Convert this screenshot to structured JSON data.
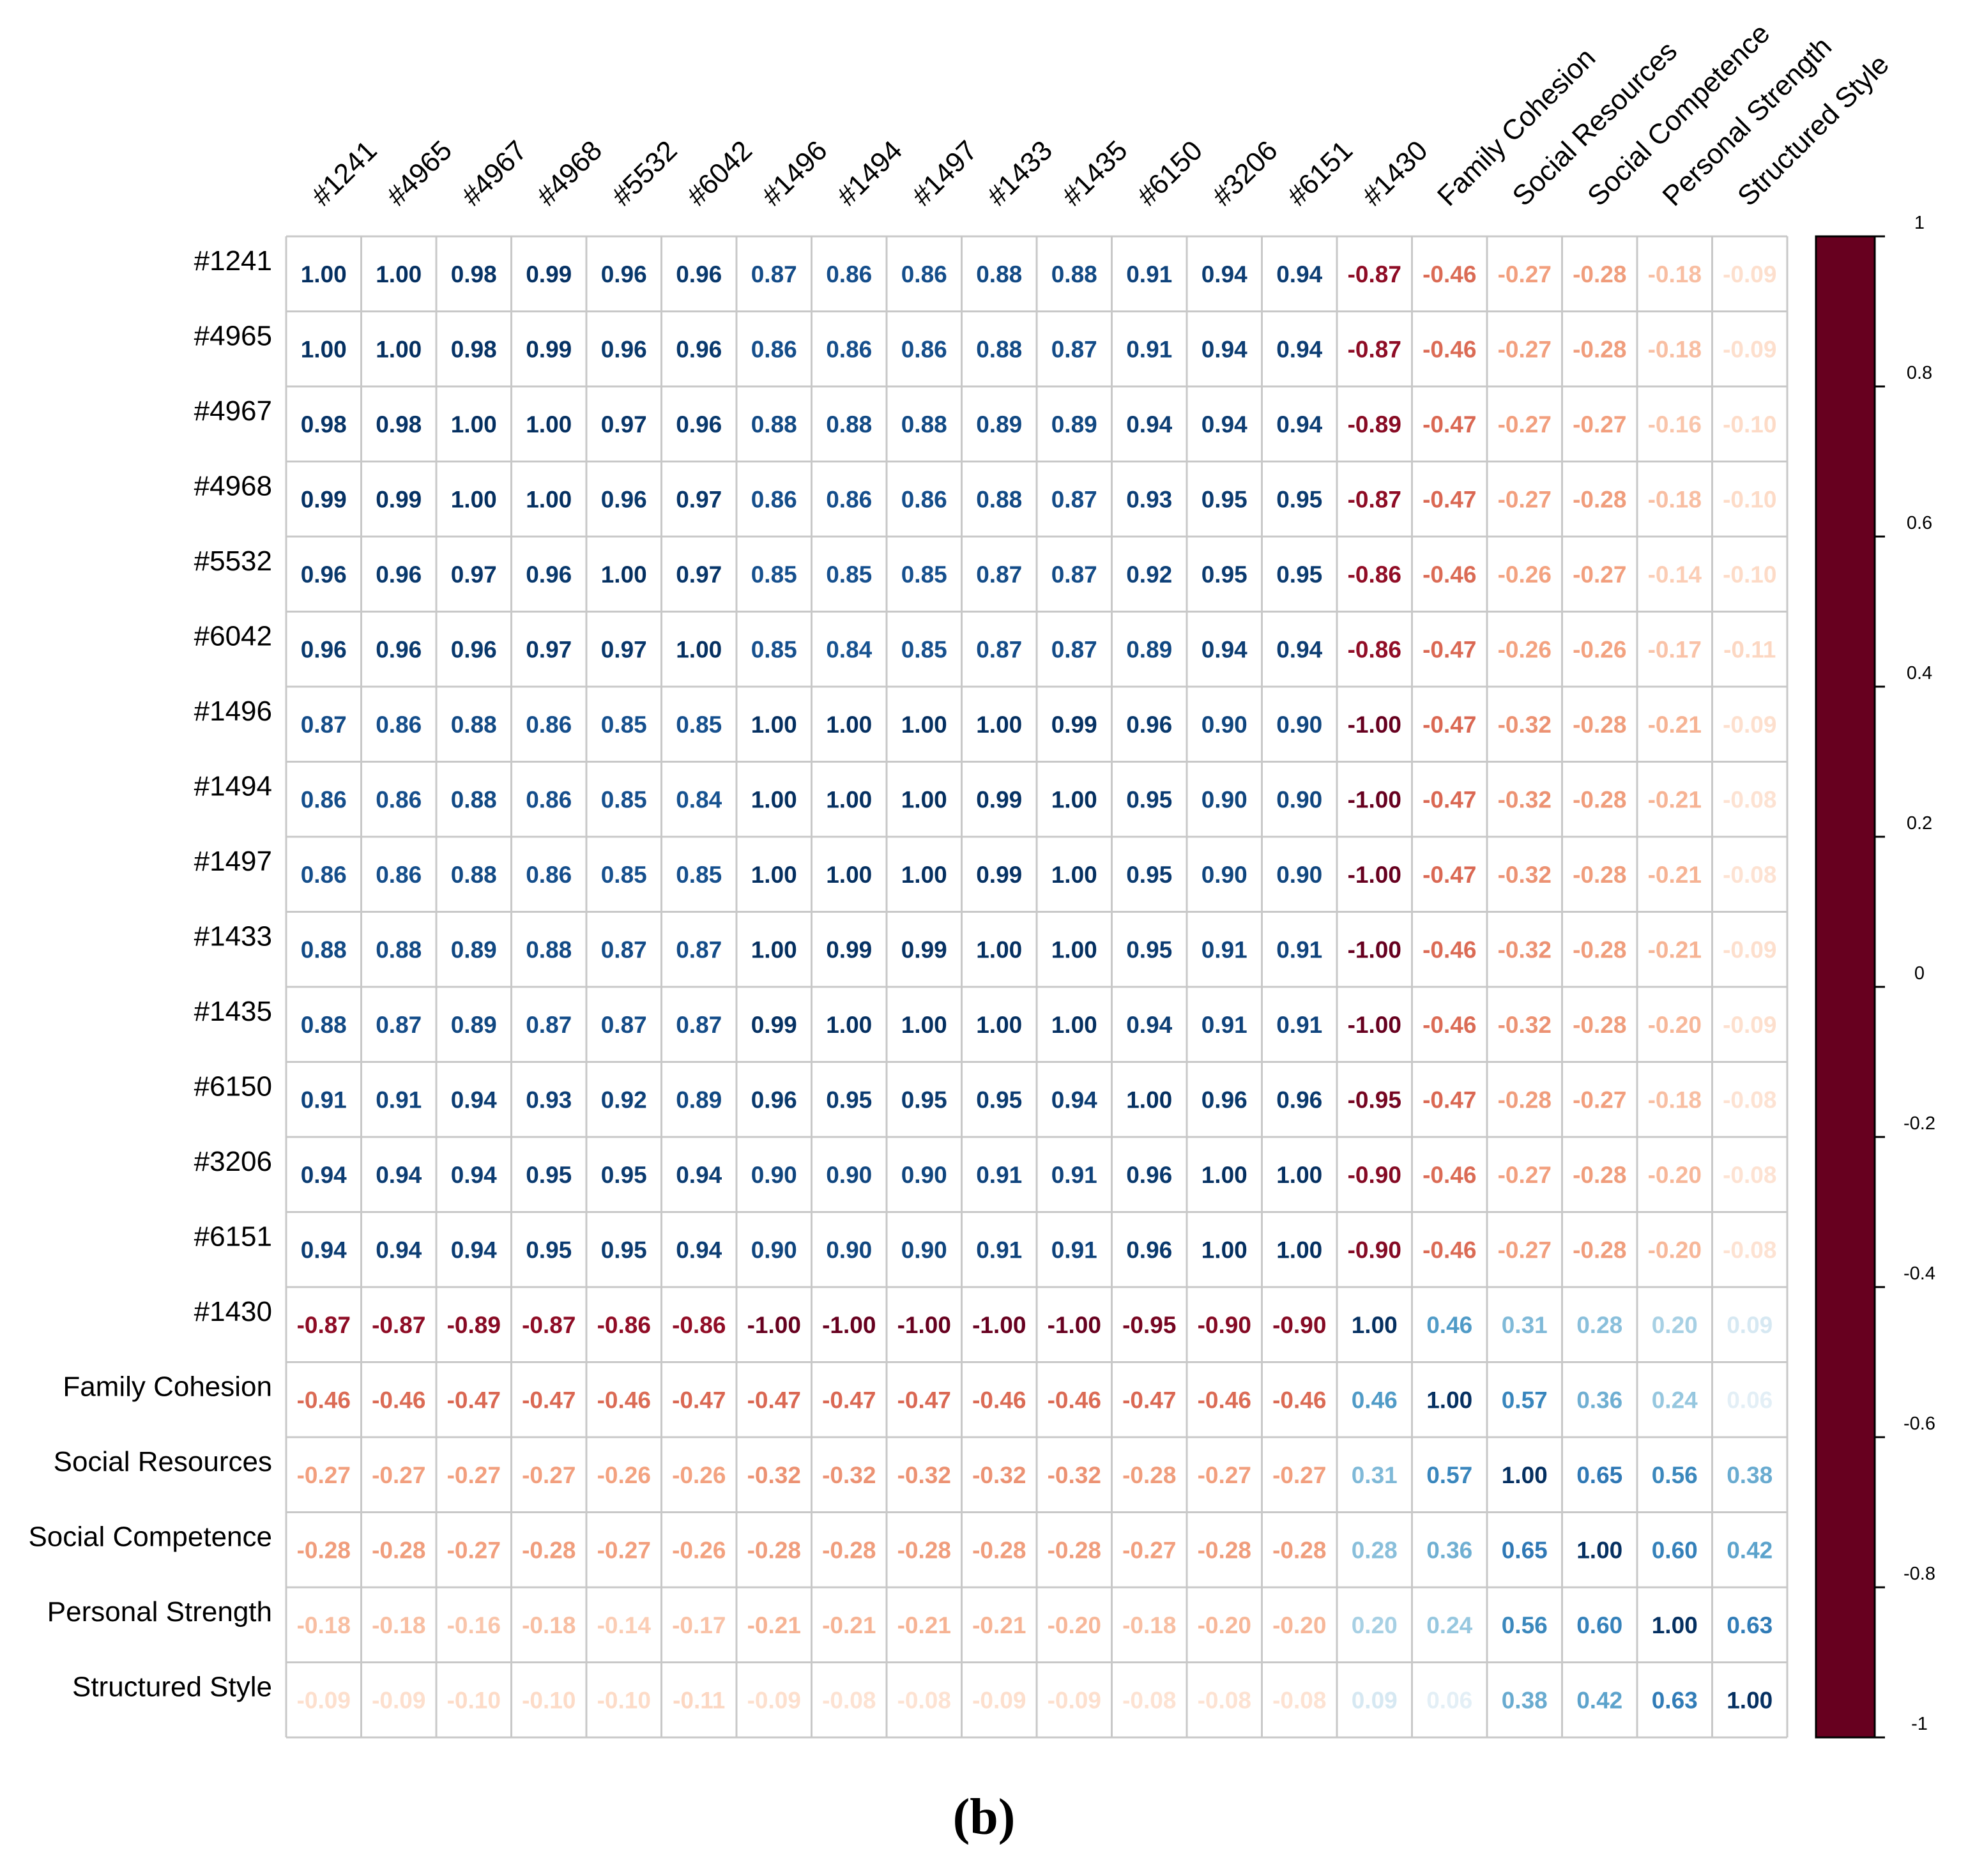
{
  "caption": "(b)",
  "chart_data": {
    "type": "heatmap",
    "title": "",
    "color_scale": {
      "min": -1,
      "max": 1,
      "stops": [
        {
          "v": -1.0,
          "c": "#67001F"
        },
        {
          "v": -0.75,
          "c": "#B2182B"
        },
        {
          "v": -0.5,
          "c": "#D6604D"
        },
        {
          "v": -0.25,
          "c": "#F4A582"
        },
        {
          "v": -0.1,
          "c": "#FDDBC7"
        },
        {
          "v": 0.0,
          "c": "#FFFFFF"
        },
        {
          "v": 0.1,
          "c": "#D1E5F0"
        },
        {
          "v": 0.25,
          "c": "#92C5DE"
        },
        {
          "v": 0.5,
          "c": "#4393C3"
        },
        {
          "v": 0.75,
          "c": "#2166AC"
        },
        {
          "v": 1.0,
          "c": "#053061"
        }
      ],
      "ticks": [
        "1",
        "0.8",
        "0.6",
        "0.4",
        "0.2",
        "0",
        "-0.2",
        "-0.4",
        "-0.6",
        "-0.8",
        "-1"
      ]
    },
    "labels": [
      "#1241",
      "#4965",
      "#4967",
      "#4968",
      "#5532",
      "#6042",
      "#1496",
      "#1494",
      "#1497",
      "#1433",
      "#1435",
      "#6150",
      "#3206",
      "#6151",
      "#1430",
      "Family Cohesion",
      "Social Resources",
      "Social Competence",
      "Personal Strength",
      "Structured Style"
    ],
    "matrix": [
      [
        "1.00",
        "1.00",
        "0.98",
        "0.99",
        "0.96",
        "0.96",
        "0.87",
        "0.86",
        "0.86",
        "0.88",
        "0.88",
        "0.91",
        "0.94",
        "0.94",
        "-0.87",
        "-0.46",
        "-0.27",
        "-0.28",
        "-0.18",
        "-0.09"
      ],
      [
        "1.00",
        "1.00",
        "0.98",
        "0.99",
        "0.96",
        "0.96",
        "0.86",
        "0.86",
        "0.86",
        "0.88",
        "0.87",
        "0.91",
        "0.94",
        "0.94",
        "-0.87",
        "-0.46",
        "-0.27",
        "-0.28",
        "-0.18",
        "-0.09"
      ],
      [
        "0.98",
        "0.98",
        "1.00",
        "1.00",
        "0.97",
        "0.96",
        "0.88",
        "0.88",
        "0.88",
        "0.89",
        "0.89",
        "0.94",
        "0.94",
        "0.94",
        "-0.89",
        "-0.47",
        "-0.27",
        "-0.27",
        "-0.16",
        "-0.10"
      ],
      [
        "0.99",
        "0.99",
        "1.00",
        "1.00",
        "0.96",
        "0.97",
        "0.86",
        "0.86",
        "0.86",
        "0.88",
        "0.87",
        "0.93",
        "0.95",
        "0.95",
        "-0.87",
        "-0.47",
        "-0.27",
        "-0.28",
        "-0.18",
        "-0.10"
      ],
      [
        "0.96",
        "0.96",
        "0.97",
        "0.96",
        "1.00",
        "0.97",
        "0.85",
        "0.85",
        "0.85",
        "0.87",
        "0.87",
        "0.92",
        "0.95",
        "0.95",
        "-0.86",
        "-0.46",
        "-0.26",
        "-0.27",
        "-0.14",
        "-0.10"
      ],
      [
        "0.96",
        "0.96",
        "0.96",
        "0.97",
        "0.97",
        "1.00",
        "0.85",
        "0.84",
        "0.85",
        "0.87",
        "0.87",
        "0.89",
        "0.94",
        "0.94",
        "-0.86",
        "-0.47",
        "-0.26",
        "-0.26",
        "-0.17",
        "-0.11"
      ],
      [
        "0.87",
        "0.86",
        "0.88",
        "0.86",
        "0.85",
        "0.85",
        "1.00",
        "1.00",
        "1.00",
        "1.00",
        "0.99",
        "0.96",
        "0.90",
        "0.90",
        "-1.00",
        "-0.47",
        "-0.32",
        "-0.28",
        "-0.21",
        "-0.09"
      ],
      [
        "0.86",
        "0.86",
        "0.88",
        "0.86",
        "0.85",
        "0.84",
        "1.00",
        "1.00",
        "1.00",
        "0.99",
        "1.00",
        "0.95",
        "0.90",
        "0.90",
        "-1.00",
        "-0.47",
        "-0.32",
        "-0.28",
        "-0.21",
        "-0.08"
      ],
      [
        "0.86",
        "0.86",
        "0.88",
        "0.86",
        "0.85",
        "0.85",
        "1.00",
        "1.00",
        "1.00",
        "0.99",
        "1.00",
        "0.95",
        "0.90",
        "0.90",
        "-1.00",
        "-0.47",
        "-0.32",
        "-0.28",
        "-0.21",
        "-0.08"
      ],
      [
        "0.88",
        "0.88",
        "0.89",
        "0.88",
        "0.87",
        "0.87",
        "1.00",
        "0.99",
        "0.99",
        "1.00",
        "1.00",
        "0.95",
        "0.91",
        "0.91",
        "-1.00",
        "-0.46",
        "-0.32",
        "-0.28",
        "-0.21",
        "-0.09"
      ],
      [
        "0.88",
        "0.87",
        "0.89",
        "0.87",
        "0.87",
        "0.87",
        "0.99",
        "1.00",
        "1.00",
        "1.00",
        "1.00",
        "0.94",
        "0.91",
        "0.91",
        "-1.00",
        "-0.46",
        "-0.32",
        "-0.28",
        "-0.20",
        "-0.09"
      ],
      [
        "0.91",
        "0.91",
        "0.94",
        "0.93",
        "0.92",
        "0.89",
        "0.96",
        "0.95",
        "0.95",
        "0.95",
        "0.94",
        "1.00",
        "0.96",
        "0.96",
        "-0.95",
        "-0.47",
        "-0.28",
        "-0.27",
        "-0.18",
        "-0.08"
      ],
      [
        "0.94",
        "0.94",
        "0.94",
        "0.95",
        "0.95",
        "0.94",
        "0.90",
        "0.90",
        "0.90",
        "0.91",
        "0.91",
        "0.96",
        "1.00",
        "1.00",
        "-0.90",
        "-0.46",
        "-0.27",
        "-0.28",
        "-0.20",
        "-0.08"
      ],
      [
        "0.94",
        "0.94",
        "0.94",
        "0.95",
        "0.95",
        "0.94",
        "0.90",
        "0.90",
        "0.90",
        "0.91",
        "0.91",
        "0.96",
        "1.00",
        "1.00",
        "-0.90",
        "-0.46",
        "-0.27",
        "-0.28",
        "-0.20",
        "-0.08"
      ],
      [
        "-0.87",
        "-0.87",
        "-0.89",
        "-0.87",
        "-0.86",
        "-0.86",
        "-1.00",
        "-1.00",
        "-1.00",
        "-1.00",
        "-1.00",
        "-0.95",
        "-0.90",
        "-0.90",
        "1.00",
        "0.46",
        "0.31",
        "0.28",
        "0.20",
        "0.09"
      ],
      [
        "-0.46",
        "-0.46",
        "-0.47",
        "-0.47",
        "-0.46",
        "-0.47",
        "-0.47",
        "-0.47",
        "-0.47",
        "-0.46",
        "-0.46",
        "-0.47",
        "-0.46",
        "-0.46",
        "0.46",
        "1.00",
        "0.57",
        "0.36",
        "0.24",
        "0.06"
      ],
      [
        "-0.27",
        "-0.27",
        "-0.27",
        "-0.27",
        "-0.26",
        "-0.26",
        "-0.32",
        "-0.32",
        "-0.32",
        "-0.32",
        "-0.32",
        "-0.28",
        "-0.27",
        "-0.27",
        "0.31",
        "0.57",
        "1.00",
        "0.65",
        "0.56",
        "0.38"
      ],
      [
        "-0.28",
        "-0.28",
        "-0.27",
        "-0.28",
        "-0.27",
        "-0.26",
        "-0.28",
        "-0.28",
        "-0.28",
        "-0.28",
        "-0.28",
        "-0.27",
        "-0.28",
        "-0.28",
        "0.28",
        "0.36",
        "0.65",
        "1.00",
        "0.60",
        "0.42"
      ],
      [
        "-0.18",
        "-0.18",
        "-0.16",
        "-0.18",
        "-0.14",
        "-0.17",
        "-0.21",
        "-0.21",
        "-0.21",
        "-0.21",
        "-0.20",
        "-0.18",
        "-0.20",
        "-0.20",
        "0.20",
        "0.24",
        "0.56",
        "0.60",
        "1.00",
        "0.63"
      ],
      [
        "-0.09",
        "-0.09",
        "-0.10",
        "-0.10",
        "-0.10",
        "-0.11",
        "-0.09",
        "-0.08",
        "-0.08",
        "-0.09",
        "-0.09",
        "-0.08",
        "-0.08",
        "-0.08",
        "0.09",
        "0.06",
        "0.38",
        "0.42",
        "0.63",
        "1.00"
      ]
    ]
  }
}
